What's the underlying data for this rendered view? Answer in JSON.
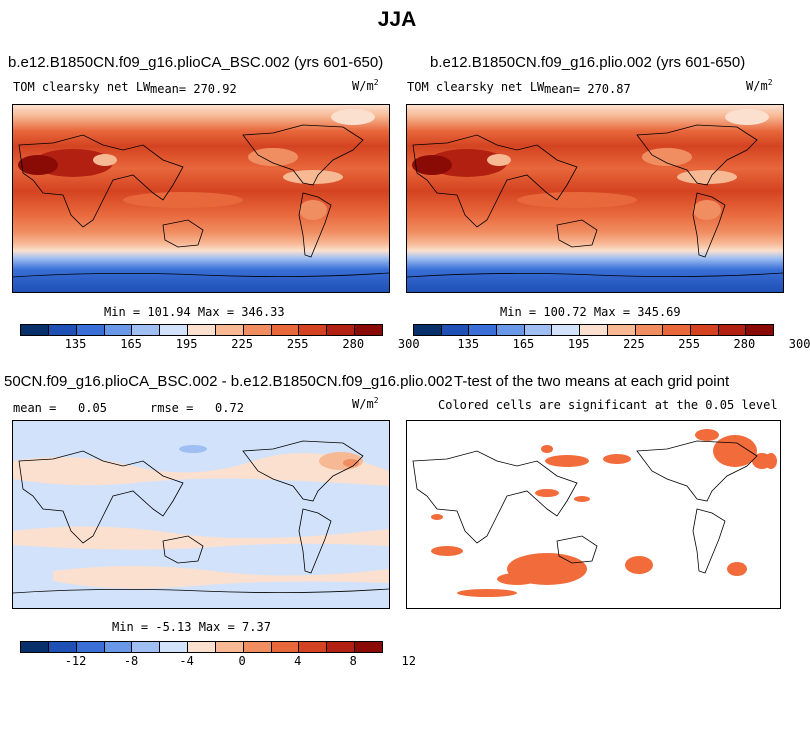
{
  "page": {
    "suptitle": "JJA"
  },
  "chart_data": [
    {
      "type": "heatmap",
      "title": "b.e12.B1850CN.f09_g16.plioCA_BSC.002 (yrs 601-650)",
      "variable": "TOM clearsky net LW",
      "mean_label": "mean=",
      "mean": "270.92",
      "units_base": "W/m",
      "units_exp": "2",
      "minmax": "Min = 101.94 Max = 346.33",
      "colorbar_ticks": [
        "135",
        "165",
        "195",
        "225",
        "255",
        "280",
        "300"
      ],
      "colors": [
        "#08306b",
        "#1e50b5",
        "#3a6fd8",
        "#6a98e8",
        "#9fbff2",
        "#d2e2fa",
        "#fbe0cf",
        "#f7b894",
        "#f08e62",
        "#e8673b",
        "#d44321",
        "#b22012",
        "#8a0a06"
      ]
    },
    {
      "type": "heatmap",
      "title": "b.e12.B1850CN.f09_g16.plio.002 (yrs 601-650)",
      "variable": "TOM clearsky net LW",
      "mean_label": "mean=",
      "mean": "270.87",
      "units_base": "W/m",
      "units_exp": "2",
      "minmax": "Min = 100.72 Max = 345.69",
      "colorbar_ticks": [
        "135",
        "165",
        "195",
        "225",
        "255",
        "280",
        "300"
      ],
      "colors": [
        "#08306b",
        "#1e50b5",
        "#3a6fd8",
        "#6a98e8",
        "#9fbff2",
        "#d2e2fa",
        "#fbe0cf",
        "#f7b894",
        "#f08e62",
        "#e8673b",
        "#d44321",
        "#b22012",
        "#8a0a06"
      ]
    },
    {
      "type": "heatmap",
      "title": "50CN.f09_g16.plioCA_BSC.002 - b.e12.B1850CN.f09_g16.plio.002",
      "mean_label": "mean =",
      "mean": "0.05",
      "rmse_label": "rmse =",
      "rmse": "0.72",
      "units_base": "W/m",
      "units_exp": "2",
      "minmax": "Min = -5.13 Max = 7.37",
      "colorbar_ticks": [
        "-12",
        "-8",
        "-4",
        "0",
        "4",
        "8",
        "12"
      ],
      "colors": [
        "#08306b",
        "#1e50b5",
        "#3a6fd8",
        "#6a98e8",
        "#9fbff2",
        "#d2e2fa",
        "#fbe0cf",
        "#f7b894",
        "#f08e62",
        "#e8673b",
        "#d44321",
        "#b22012",
        "#8a0a06"
      ]
    },
    {
      "type": "heatmap",
      "title": "T-test of the two means at each grid point",
      "subtitle": "Colored cells are significant at the 0.05 level",
      "colors": [
        "#f26b3a"
      ]
    }
  ]
}
